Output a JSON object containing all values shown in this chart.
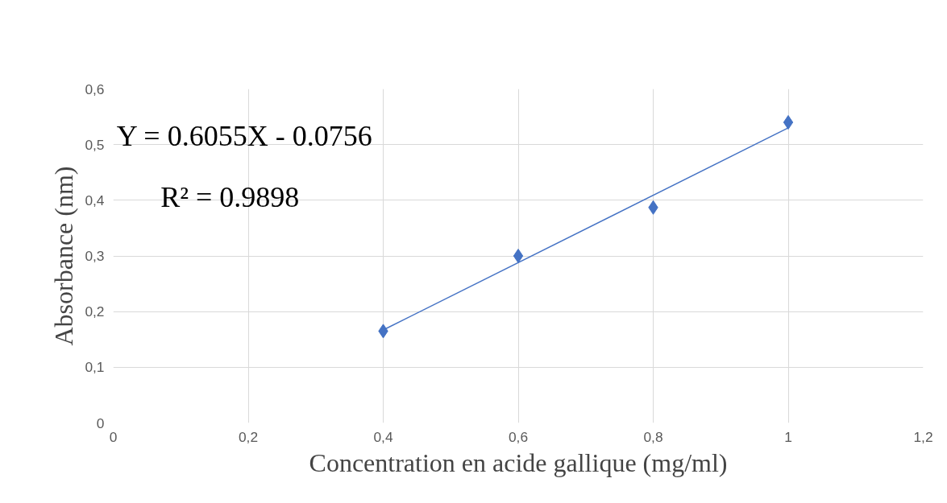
{
  "chart_data": {
    "type": "scatter",
    "xlabel": "Concentration en acide gallique (mg/ml)",
    "ylabel": "Absorbance (nm)",
    "series": [
      {
        "color": "#4472c4",
        "x": [
          0.4,
          0.6,
          0.8,
          1.0
        ],
        "values": [
          0.165,
          0.3,
          0.387,
          0.54
        ],
        "marker": "diamond"
      },
      {
        "type": "line",
        "color": "#4472c4",
        "x": [
          0.4,
          1.0
        ],
        "values": [
          0.167,
          0.53
        ],
        "line_style": "solid"
      }
    ],
    "xlim": [
      0,
      1.2
    ],
    "ylim": [
      0,
      0.6
    ],
    "xticks": [
      0,
      {
        "value": 0.2,
        "label": "0,2"
      },
      {
        "value": 0.4,
        "label": "0,4"
      },
      {
        "value": 0.6,
        "label": "0,6"
      },
      {
        "value": 0.8,
        "label": "0,8"
      },
      1,
      {
        "value": 1.2,
        "label": "1,2"
      }
    ],
    "yticks": [
      0,
      {
        "value": 0.1,
        "label": "0,1"
      },
      {
        "value": 0.2,
        "label": "0,2"
      },
      {
        "value": 0.3,
        "label": "0,3"
      },
      {
        "value": 0.4,
        "label": "0,4"
      },
      {
        "value": 0.5,
        "label": "0,5"
      },
      {
        "value": 0.6,
        "label": "0,6"
      }
    ],
    "annotations": [
      "Y = 0.6055X - 0.0756",
      "R² = 0.9898"
    ],
    "grid": true
  }
}
